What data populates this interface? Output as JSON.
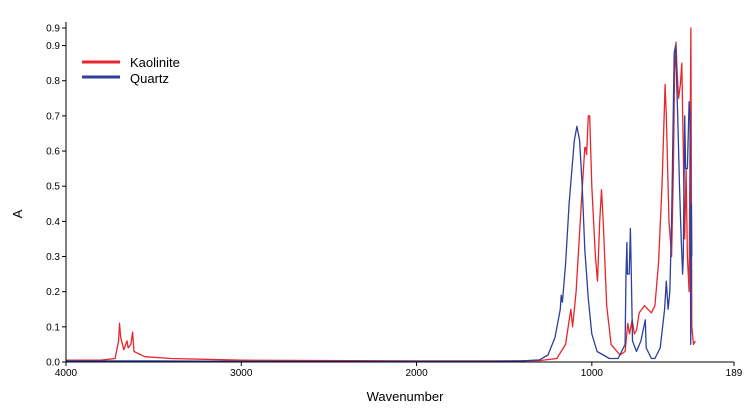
{
  "chart_data": {
    "type": "line",
    "title": "",
    "xlabel": "Wavenumber",
    "ylabel": "A",
    "xlim": [
      4000,
      189
    ],
    "ylim": [
      0,
      0.95
    ],
    "x_reversed": true,
    "grid": false,
    "legend_position": "top-left",
    "x_ticks": [
      {
        "value": 4000,
        "label": "4000"
      },
      {
        "value": 3000,
        "label": "3000"
      },
      {
        "value": 2000,
        "label": "2000"
      },
      {
        "value": 1000,
        "label": "1000"
      },
      {
        "value": 189,
        "label": "189"
      }
    ],
    "y_ticks": [
      {
        "value": 0.0,
        "label": "0.0"
      },
      {
        "value": 0.1,
        "label": "0.1"
      },
      {
        "value": 0.2,
        "label": "0.2"
      },
      {
        "value": 0.3,
        "label": "0.3"
      },
      {
        "value": 0.4,
        "label": "0.4"
      },
      {
        "value": 0.5,
        "label": "0.5"
      },
      {
        "value": 0.6,
        "label": "0.6"
      },
      {
        "value": 0.7,
        "label": "0.7"
      },
      {
        "value": 0.8,
        "label": "0.8"
      },
      {
        "value": 0.9,
        "label": "0.9"
      },
      {
        "value": 0.95,
        "label": "0.9"
      }
    ],
    "series": [
      {
        "name": "Kaolinite",
        "color": "#e8262b",
        "points": [
          [
            4000,
            0.005
          ],
          [
            3800,
            0.005
          ],
          [
            3720,
            0.01
          ],
          [
            3700,
            0.06
          ],
          [
            3695,
            0.11
          ],
          [
            3688,
            0.07
          ],
          [
            3670,
            0.035
          ],
          [
            3652,
            0.06
          ],
          [
            3645,
            0.04
          ],
          [
            3630,
            0.05
          ],
          [
            3620,
            0.085
          ],
          [
            3612,
            0.03
          ],
          [
            3550,
            0.015
          ],
          [
            3400,
            0.01
          ],
          [
            3000,
            0.005
          ],
          [
            2000,
            0.003
          ],
          [
            1500,
            0.003
          ],
          [
            1300,
            0.004
          ],
          [
            1200,
            0.01
          ],
          [
            1150,
            0.05
          ],
          [
            1120,
            0.15
          ],
          [
            1110,
            0.1
          ],
          [
            1090,
            0.2
          ],
          [
            1060,
            0.45
          ],
          [
            1040,
            0.61
          ],
          [
            1035,
            0.61
          ],
          [
            1030,
            0.59
          ],
          [
            1020,
            0.7
          ],
          [
            1012,
            0.7
          ],
          [
            1000,
            0.5
          ],
          [
            980,
            0.3
          ],
          [
            968,
            0.23
          ],
          [
            955,
            0.4
          ],
          [
            945,
            0.49
          ],
          [
            935,
            0.4
          ],
          [
            915,
            0.16
          ],
          [
            890,
            0.05
          ],
          [
            840,
            0.02
          ],
          [
            810,
            0.03
          ],
          [
            795,
            0.11
          ],
          [
            785,
            0.08
          ],
          [
            770,
            0.12
          ],
          [
            757,
            0.08
          ],
          [
            745,
            0.09
          ],
          [
            730,
            0.14
          ],
          [
            700,
            0.16
          ],
          [
            680,
            0.15
          ],
          [
            660,
            0.14
          ],
          [
            640,
            0.16
          ],
          [
            620,
            0.28
          ],
          [
            600,
            0.5
          ],
          [
            582,
            0.79
          ],
          [
            575,
            0.7
          ],
          [
            560,
            0.4
          ],
          [
            545,
            0.3
          ],
          [
            535,
            0.55
          ],
          [
            528,
            0.83
          ],
          [
            520,
            0.91
          ],
          [
            513,
            0.82
          ],
          [
            505,
            0.75
          ],
          [
            495,
            0.79
          ],
          [
            487,
            0.85
          ],
          [
            478,
            0.6
          ],
          [
            470,
            0.35
          ],
          [
            462,
            0.55
          ],
          [
            455,
            0.3
          ],
          [
            445,
            0.2
          ],
          [
            435,
            0.95
          ],
          [
            430,
            0.1
          ],
          [
            420,
            0.05
          ],
          [
            410,
            0.06
          ]
        ]
      },
      {
        "name": "Quartz",
        "color": "#2e3f9c",
        "points": [
          [
            4000,
            0.003
          ],
          [
            3500,
            0.003
          ],
          [
            3000,
            0.002
          ],
          [
            2000,
            0.002
          ],
          [
            1600,
            0.002
          ],
          [
            1400,
            0.003
          ],
          [
            1300,
            0.006
          ],
          [
            1250,
            0.02
          ],
          [
            1210,
            0.07
          ],
          [
            1180,
            0.15
          ],
          [
            1175,
            0.19
          ],
          [
            1168,
            0.17
          ],
          [
            1150,
            0.28
          ],
          [
            1130,
            0.45
          ],
          [
            1100,
            0.63
          ],
          [
            1085,
            0.67
          ],
          [
            1070,
            0.63
          ],
          [
            1055,
            0.5
          ],
          [
            1040,
            0.32
          ],
          [
            1020,
            0.18
          ],
          [
            1000,
            0.08
          ],
          [
            970,
            0.03
          ],
          [
            900,
            0.01
          ],
          [
            850,
            0.01
          ],
          [
            810,
            0.05
          ],
          [
            805,
            0.25
          ],
          [
            800,
            0.34
          ],
          [
            797,
            0.25
          ],
          [
            787,
            0.25
          ],
          [
            780,
            0.38
          ],
          [
            775,
            0.25
          ],
          [
            768,
            0.06
          ],
          [
            745,
            0.03
          ],
          [
            720,
            0.06
          ],
          [
            695,
            0.12
          ],
          [
            690,
            0.04
          ],
          [
            660,
            0.01
          ],
          [
            640,
            0.01
          ],
          [
            610,
            0.04
          ],
          [
            585,
            0.15
          ],
          [
            575,
            0.23
          ],
          [
            565,
            0.15
          ],
          [
            555,
            0.2
          ],
          [
            545,
            0.4
          ],
          [
            530,
            0.88
          ],
          [
            522,
            0.9
          ],
          [
            510,
            0.7
          ],
          [
            500,
            0.5
          ],
          [
            490,
            0.35
          ],
          [
            482,
            0.25
          ],
          [
            478,
            0.3
          ],
          [
            470,
            0.7
          ],
          [
            465,
            0.55
          ],
          [
            455,
            0.55
          ],
          [
            445,
            0.74
          ],
          [
            440,
            0.7
          ],
          [
            436,
            0.05
          ],
          [
            432,
            0.45
          ],
          [
            430,
            0.3
          ]
        ]
      }
    ]
  }
}
